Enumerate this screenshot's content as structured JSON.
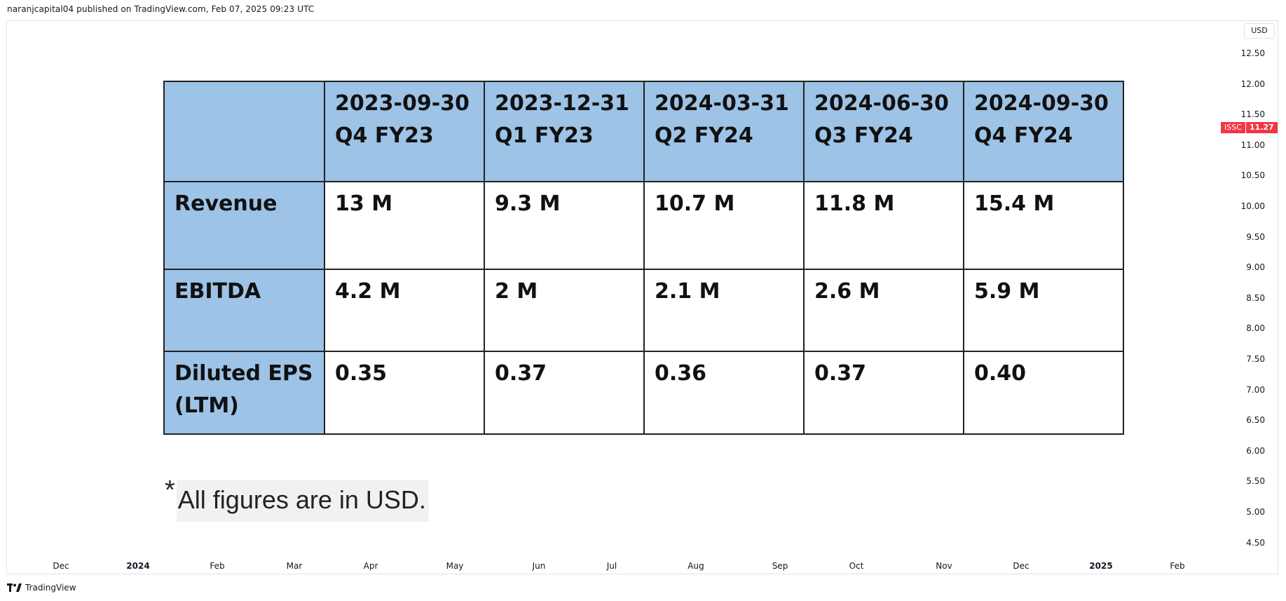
{
  "header": {
    "published_line": "naranjcapital04 published on TradingView.com, Feb 07, 2025 09:23 UTC"
  },
  "price_axis": {
    "currency": "USD",
    "ticks": [
      "12.50",
      "12.00",
      "11.50",
      "11.00",
      "10.50",
      "10.00",
      "9.50",
      "9.00",
      "8.50",
      "8.00",
      "7.50",
      "7.00",
      "6.50",
      "6.00",
      "5.50",
      "5.00",
      "4.50"
    ],
    "symbol": "ISSC",
    "last_price": "11.27",
    "badge_color": "#f23645"
  },
  "time_axis": {
    "ticks": [
      {
        "label": "Dec",
        "year": false
      },
      {
        "label": "2024",
        "year": true
      },
      {
        "label": "Feb",
        "year": false
      },
      {
        "label": "Mar",
        "year": false
      },
      {
        "label": "Apr",
        "year": false
      },
      {
        "label": "May",
        "year": false
      },
      {
        "label": "Jun",
        "year": false
      },
      {
        "label": "Jul",
        "year": false
      },
      {
        "label": "Aug",
        "year": false
      },
      {
        "label": "Sep",
        "year": false
      },
      {
        "label": "Oct",
        "year": false
      },
      {
        "label": "Nov",
        "year": false
      },
      {
        "label": "Dec",
        "year": false
      },
      {
        "label": "2025",
        "year": true
      },
      {
        "label": "Feb",
        "year": false
      }
    ]
  },
  "table": {
    "header_color": "#9dc3e6",
    "columns": [
      {
        "date": "2023-09-30",
        "quarter": "Q4 FY23"
      },
      {
        "date": "2023-12-31",
        "quarter": "Q1 FY23"
      },
      {
        "date": "2024-03-31",
        "quarter": "Q2 FY24"
      },
      {
        "date": "2024-06-30",
        "quarter": "Q3 FY24"
      },
      {
        "date": "2024-09-30",
        "quarter": "Q4 FY24"
      }
    ],
    "rows": [
      {
        "label": "Revenue",
        "values": [
          "13 M",
          "9.3 M",
          "10.7 M",
          "11.8 M",
          "15.4 M"
        ]
      },
      {
        "label": "EBITDA",
        "values": [
          "4.2 M",
          "2 M",
          "2.1 M",
          "2.6 M",
          "5.9 M"
        ]
      },
      {
        "label": "Diluted EPS (LTM)",
        "values": [
          "0.35",
          "0.37",
          "0.36",
          "0.37",
          "0.40"
        ]
      }
    ]
  },
  "note": {
    "star": "*",
    "text": "All figures are in USD."
  },
  "footer": {
    "brand": "TradingView",
    "logo_icon": "tradingview-logo-icon"
  }
}
